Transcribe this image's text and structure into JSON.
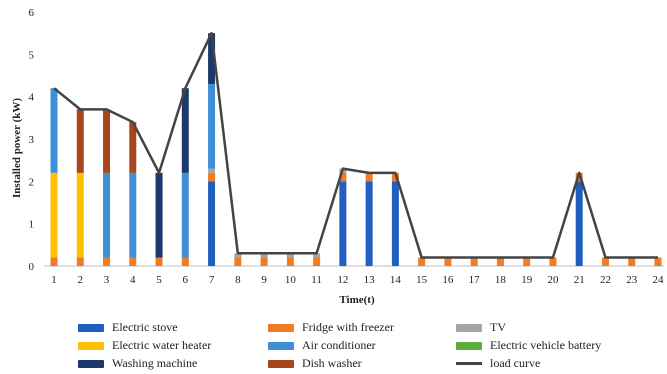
{
  "chart_data": {
    "type": "bar",
    "stacked": true,
    "title": "",
    "xlabel": "Time(t)",
    "ylabel": "Installed power (kW)",
    "ylim": [
      0,
      6
    ],
    "yticks": [
      0,
      1,
      2,
      3,
      4,
      5,
      6
    ],
    "grid": false,
    "legend_position": "bottom",
    "categories": [
      "1",
      "2",
      "3",
      "4",
      "5",
      "6",
      "7",
      "8",
      "9",
      "10",
      "11",
      "12",
      "13",
      "14",
      "15",
      "16",
      "17",
      "18",
      "19",
      "20",
      "21",
      "22",
      "23",
      "24"
    ],
    "series": [
      {
        "name": "Electric stove",
        "color": "#1f5fbf",
        "values": [
          0,
          0,
          0,
          0,
          0,
          0,
          2.0,
          0,
          0,
          0,
          0,
          2.0,
          2.0,
          2.0,
          0,
          0,
          0,
          0,
          0,
          0,
          2.0,
          0,
          0,
          0
        ]
      },
      {
        "name": "Fridge with freezer",
        "color": "#f07d26",
        "values": [
          0.2,
          0.2,
          0.2,
          0.2,
          0.2,
          0.2,
          0.2,
          0.2,
          0.2,
          0.2,
          0.2,
          0.2,
          0.2,
          0.2,
          0.2,
          0.2,
          0.2,
          0.2,
          0.2,
          0.2,
          0.2,
          0.2,
          0.2,
          0.2
        ]
      },
      {
        "name": "TV",
        "color": "#a5a5a5",
        "values": [
          0,
          0,
          0,
          0,
          0,
          0,
          0.1,
          0.1,
          0.1,
          0.1,
          0.1,
          0.1,
          0,
          0,
          0,
          0,
          0,
          0,
          0,
          0,
          0,
          0,
          0,
          0
        ]
      },
      {
        "name": "Electric water heater",
        "color": "#ffc000",
        "values": [
          2.0,
          2.0,
          0,
          0,
          0,
          0,
          0,
          0,
          0,
          0,
          0,
          0,
          0,
          0,
          0,
          0,
          0,
          0,
          0,
          0,
          0,
          0,
          0,
          0
        ]
      },
      {
        "name": "Air conditioner",
        "color": "#3f8fd6",
        "values": [
          2.0,
          0,
          2.0,
          2.0,
          0,
          2.0,
          2.0,
          0,
          0,
          0,
          0,
          0,
          0,
          0,
          0,
          0,
          0,
          0,
          0,
          0,
          0,
          0,
          0,
          0
        ]
      },
      {
        "name": "Electric vehicle battery",
        "color": "#5cad3a",
        "values": [
          0,
          0,
          0,
          0,
          0,
          0,
          0,
          0,
          0,
          0,
          0,
          0,
          0,
          0,
          0,
          0,
          0,
          0,
          0,
          0,
          0,
          0,
          0,
          0
        ]
      },
      {
        "name": "Washing machine",
        "color": "#1b3a6b",
        "values": [
          0,
          0,
          0,
          0,
          2.0,
          2.0,
          1.2,
          0,
          0,
          0,
          0,
          0,
          0,
          0,
          0,
          0,
          0,
          0,
          0,
          0,
          0,
          0,
          0,
          0
        ]
      },
      {
        "name": "Dish washer",
        "color": "#a9451a",
        "values": [
          0,
          1.5,
          1.5,
          1.2,
          0,
          0,
          0,
          0,
          0,
          0,
          0,
          0,
          0,
          0,
          0,
          0,
          0,
          0,
          0,
          0,
          0,
          0,
          0,
          0
        ]
      }
    ],
    "line": {
      "name": "load curve",
      "color": "#444444",
      "values": [
        4.2,
        3.7,
        3.7,
        3.4,
        2.2,
        4.2,
        5.5,
        0.3,
        0.3,
        0.3,
        0.3,
        2.3,
        2.2,
        2.2,
        0.2,
        0.2,
        0.2,
        0.2,
        0.2,
        0.2,
        2.2,
        0.2,
        0.2,
        0.2
      ]
    }
  },
  "legend": [
    {
      "name": "Electric stove",
      "kind": "bar",
      "color": "#1f5fbf"
    },
    {
      "name": "Fridge with freezer",
      "kind": "bar",
      "color": "#f07d26"
    },
    {
      "name": "TV",
      "kind": "bar",
      "color": "#a5a5a5"
    },
    {
      "name": "Electric water heater",
      "kind": "bar",
      "color": "#ffc000"
    },
    {
      "name": "Air conditioner",
      "kind": "bar",
      "color": "#3f8fd6"
    },
    {
      "name": "Electric vehicle battery",
      "kind": "bar",
      "color": "#5cad3a"
    },
    {
      "name": "Washing machine",
      "kind": "bar",
      "color": "#1b3a6b"
    },
    {
      "name": "Dish washer",
      "kind": "bar",
      "color": "#a9451a"
    },
    {
      "name": "load curve",
      "kind": "line",
      "color": "#444444"
    }
  ]
}
